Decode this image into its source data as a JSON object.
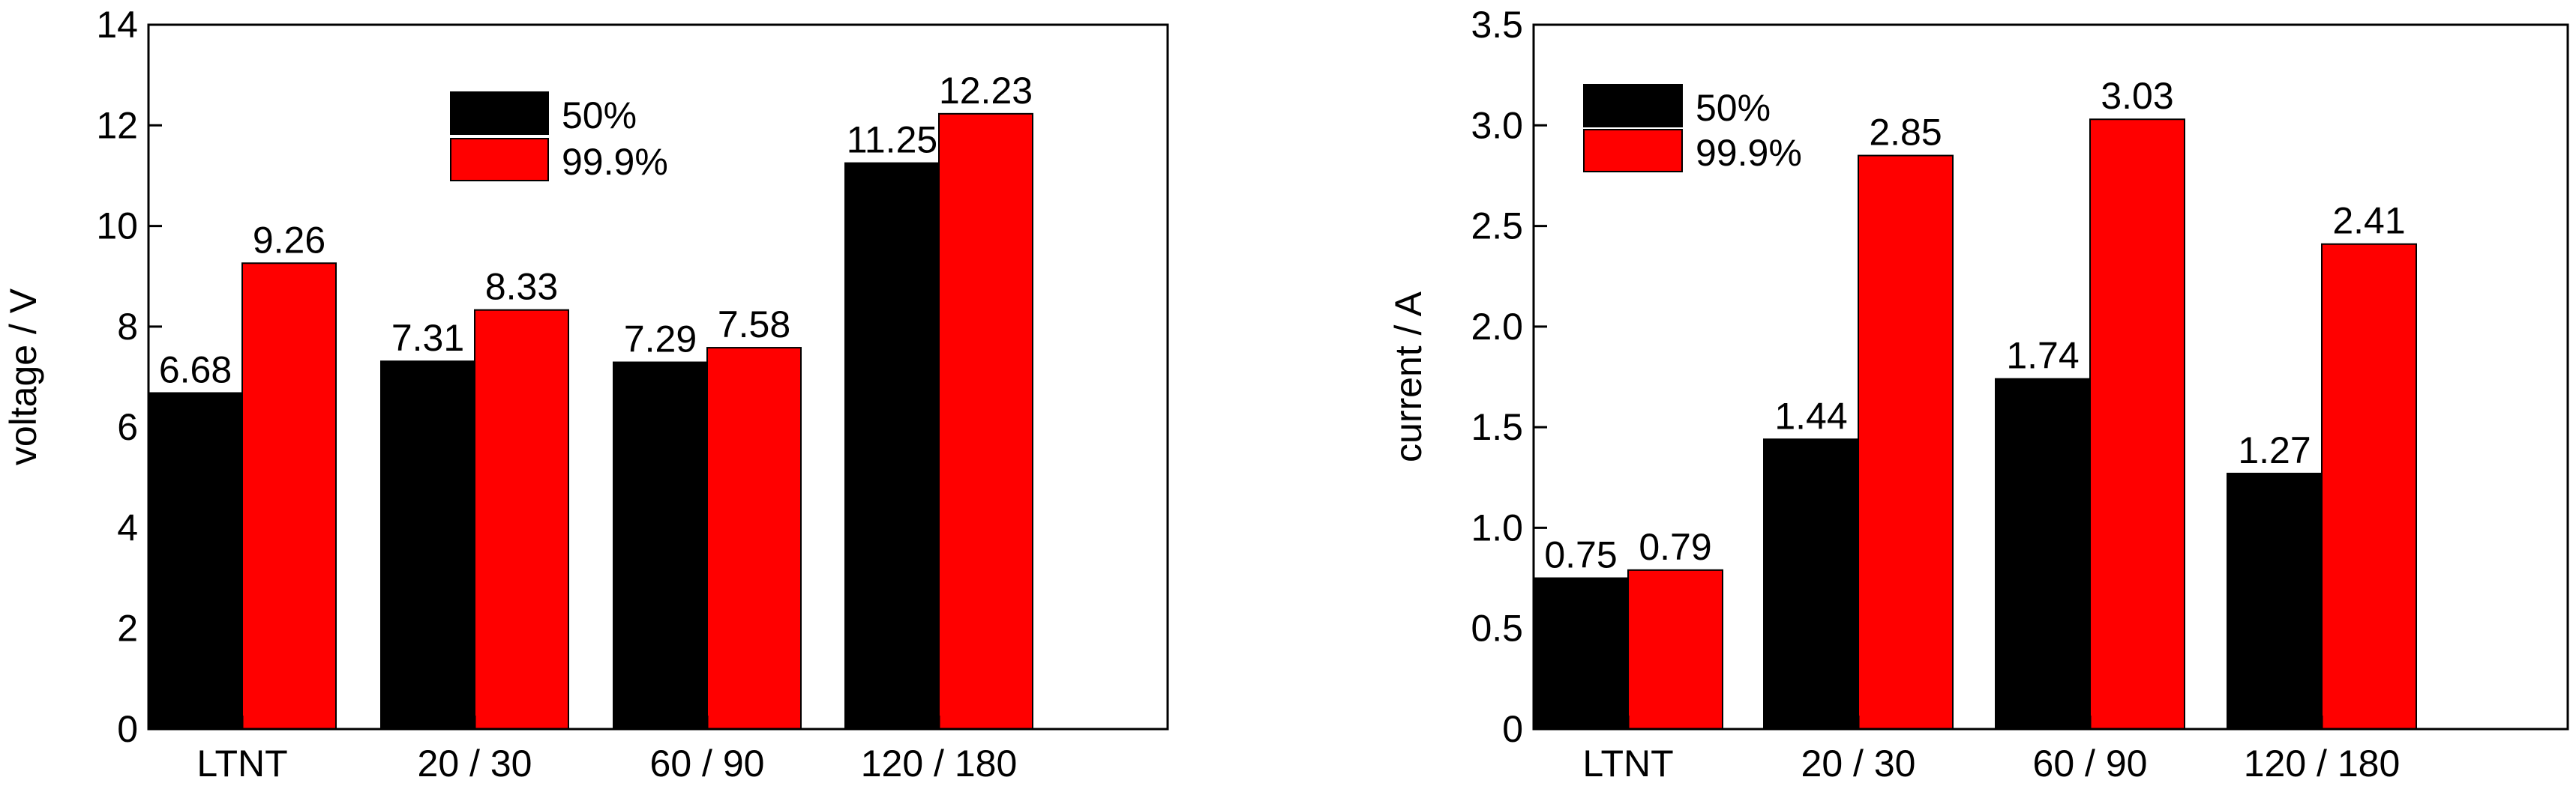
{
  "colors": {
    "series_50": "#000000",
    "series_999": "#ff0000",
    "axis": "#000000"
  },
  "chart_data": [
    {
      "type": "bar",
      "categories": [
        "LTNT",
        "20 / 30",
        "60 / 90",
        "120 / 180"
      ],
      "series": [
        {
          "name": "50%",
          "values": [
            6.68,
            7.31,
            7.29,
            11.25
          ],
          "labels": [
            "6.68",
            "7.31",
            "7.29",
            "11.25"
          ]
        },
        {
          "name": "99.9%",
          "values": [
            9.26,
            8.33,
            7.58,
            12.23
          ],
          "labels": [
            "9.26",
            "8.33",
            "7.58",
            "12.23"
          ]
        }
      ],
      "title": "",
      "xlabel": "",
      "ylabel": "voltage / V",
      "ylim": [
        0,
        14
      ],
      "yticks": [
        0,
        2,
        4,
        6,
        8,
        10,
        12,
        14
      ],
      "ytick_labels": [
        "0",
        "2",
        "4",
        "6",
        "8",
        "10",
        "12",
        "14"
      ],
      "grid": false,
      "legend_position": "top-center"
    },
    {
      "type": "bar",
      "categories": [
        "LTNT",
        "20 / 30",
        "60 / 90",
        "120 / 180"
      ],
      "series": [
        {
          "name": "50%",
          "values": [
            0.75,
            1.44,
            1.74,
            1.27
          ],
          "labels": [
            "0.75",
            "1.44",
            "1.74",
            "1.27"
          ]
        },
        {
          "name": "99.9%",
          "values": [
            0.79,
            2.85,
            3.03,
            2.41
          ],
          "labels": [
            "0.79",
            "2.85",
            "3.03",
            "2.41"
          ]
        }
      ],
      "title": "",
      "xlabel": "",
      "ylabel": "current / A",
      "ylim": [
        0,
        3.5
      ],
      "yticks": [
        0,
        0.5,
        1.0,
        1.5,
        2.0,
        2.5,
        3.0,
        3.5
      ],
      "ytick_labels": [
        "0",
        "0.5",
        "1.0",
        "1.5",
        "2.0",
        "2.5",
        "3.0",
        "3.5"
      ],
      "grid": false,
      "legend_position": "top-left"
    }
  ]
}
